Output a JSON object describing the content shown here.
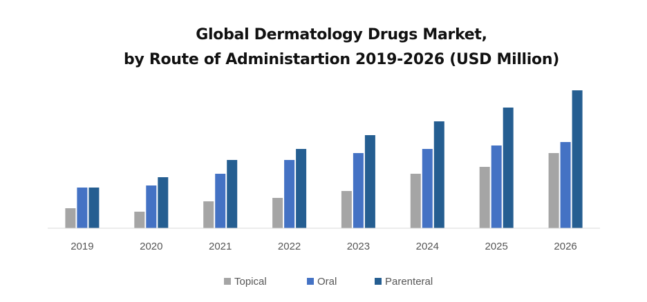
{
  "chart_data": {
    "type": "bar",
    "title_lines": [
      "Global Dermatology Drugs Market,",
      "by Route of Administartion 2019-2026 (USD Million)"
    ],
    "categories": [
      "2019",
      "2020",
      "2021",
      "2022",
      "2023",
      "2024",
      "2025",
      "2026"
    ],
    "series": [
      {
        "name": "Topical",
        "color": "#a5a5a5",
        "values": [
          29,
          24,
          39,
          44,
          54,
          79,
          89,
          109
        ]
      },
      {
        "name": "Oral",
        "color": "#4472c4",
        "values": [
          59,
          62,
          79,
          99,
          109,
          115,
          120,
          125
        ]
      },
      {
        "name": "Parenteral",
        "color": "#255e91",
        "values": [
          59,
          74,
          99,
          115,
          135,
          155,
          175,
          200
        ]
      }
    ],
    "ylim": [
      0,
      200
    ],
    "y_axis_visible": false,
    "grid": false,
    "legend_position": "bottom"
  }
}
